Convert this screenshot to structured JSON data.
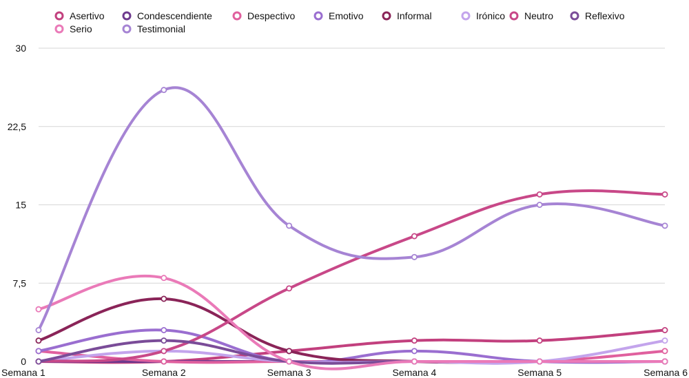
{
  "chart_data": {
    "type": "line",
    "smooth": true,
    "categories": [
      "Semana 1",
      "Semana 2",
      "Semana 3",
      "Semana 4",
      "Semana 5",
      "Semana 6"
    ],
    "ylim": [
      0,
      30
    ],
    "yticks": [
      0,
      7.5,
      15,
      22.5,
      30
    ],
    "ytick_labels": [
      "0",
      "7,5",
      "15",
      "22,5",
      "30"
    ],
    "grid": true,
    "legend_position": "top",
    "series": [
      {
        "name": "Asertivo",
        "color": "#c2407e",
        "values": [
          0,
          0,
          1,
          2,
          2,
          3
        ]
      },
      {
        "name": "Condescendiente",
        "color": "#6e3a8e",
        "values": [
          0,
          0,
          0,
          0,
          0,
          0
        ]
      },
      {
        "name": "Despectivo",
        "color": "#e0609e",
        "values": [
          1,
          0,
          0,
          0,
          0,
          1
        ]
      },
      {
        "name": "Emotivo",
        "color": "#9a6ed0",
        "values": [
          1,
          3,
          0,
          1,
          0,
          0
        ]
      },
      {
        "name": "Informal",
        "color": "#8a2458",
        "values": [
          2,
          6,
          1,
          0,
          0,
          0
        ]
      },
      {
        "name": "Irónico",
        "color": "#c3a4ec",
        "values": [
          0,
          1,
          0,
          0,
          0,
          2
        ]
      },
      {
        "name": "Neutro",
        "color": "#c84888",
        "values": [
          0,
          1,
          7,
          12,
          16,
          16
        ]
      },
      {
        "name": "Reflexivo",
        "color": "#7a4c98",
        "values": [
          0,
          2,
          0,
          0,
          0,
          0
        ]
      },
      {
        "name": "Serio",
        "color": "#ea7ab8",
        "values": [
          5,
          8,
          0,
          0,
          0,
          0
        ]
      },
      {
        "name": "Testimonial",
        "color": "#a684d4",
        "values": [
          3,
          26,
          13,
          10,
          15,
          13
        ]
      }
    ]
  }
}
